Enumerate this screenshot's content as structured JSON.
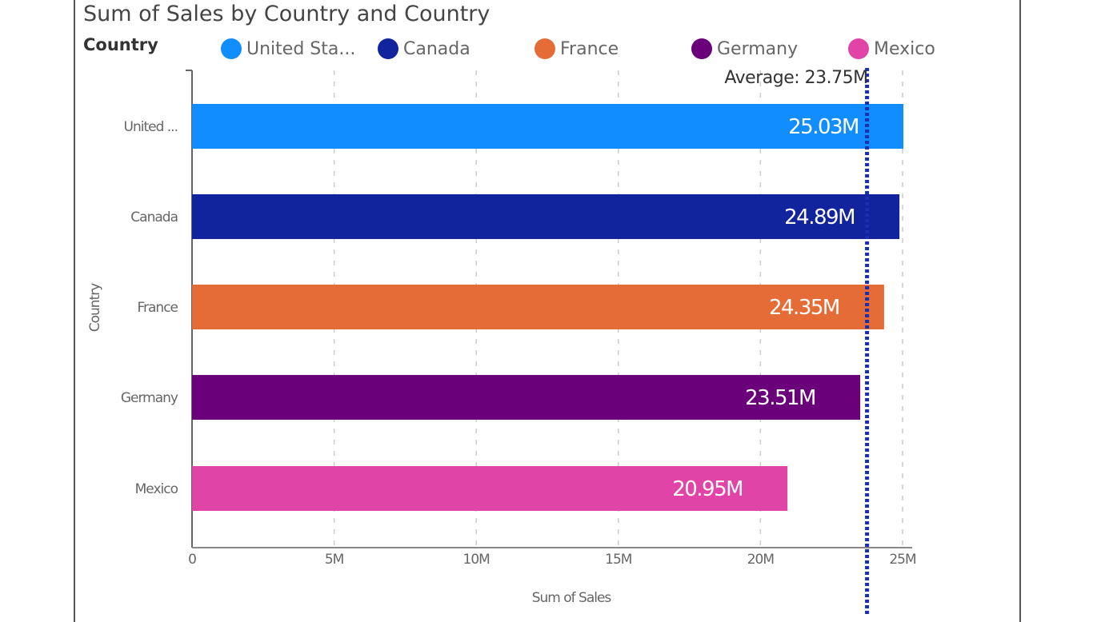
{
  "chart_data": {
    "type": "bar",
    "orientation": "horizontal",
    "title": "Sum of Sales by Country and Country",
    "legend_title": "Country",
    "legend_placement": "top",
    "legend": [
      "United Sta...",
      "Canada",
      "France",
      "Germany",
      "Mexico"
    ],
    "categories": [
      "United ...",
      "Canada",
      "France",
      "Germany",
      "Mexico"
    ],
    "values": [
      25.03,
      24.89,
      24.35,
      23.51,
      20.95
    ],
    "data_labels": [
      "25.03M",
      "24.89M",
      "24.35M",
      "23.51M",
      "20.95M"
    ],
    "colors": [
      "#118DFF",
      "#12239E",
      "#E66C37",
      "#6B007B",
      "#E044A7"
    ],
    "xlabel": "Sum of Sales",
    "ylabel": "Country",
    "xlim": [
      0,
      25
    ],
    "x_ticks": [
      0,
      5,
      10,
      15,
      20,
      25
    ],
    "x_tick_labels": [
      "0",
      "5M",
      "10M",
      "15M",
      "20M",
      "25M"
    ],
    "grid": true,
    "average_line": {
      "value": 23.75,
      "label": "Average: 23.75M",
      "color": "#1a2fb0"
    }
  }
}
